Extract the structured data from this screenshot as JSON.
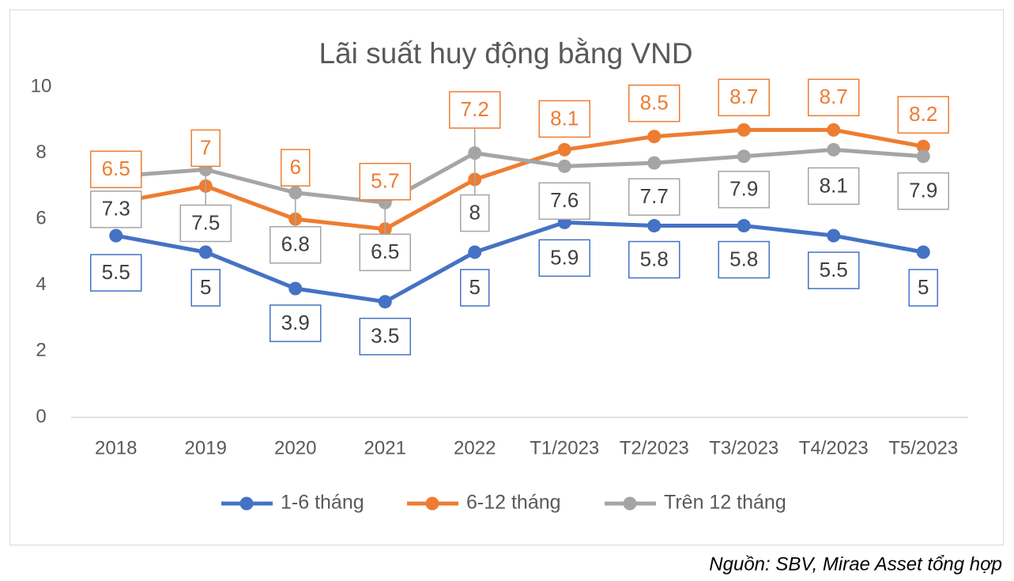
{
  "chart_data": {
    "type": "line",
    "title": "Lãi suất huy động bằng VND",
    "categories": [
      "2018",
      "2019",
      "2020",
      "2021",
      "2022",
      "T1/2023",
      "T2/2023",
      "T3/2023",
      "T4/2023",
      "T5/2023"
    ],
    "series": [
      {
        "name": "1-6 tháng",
        "color": "#4472c4",
        "values": [
          5.5,
          5,
          3.9,
          3.5,
          5,
          5.9,
          5.8,
          5.8,
          5.5,
          5
        ]
      },
      {
        "name": "6-12 tháng",
        "color": "#ed7d31",
        "values": [
          6.5,
          7,
          6,
          5.7,
          7.2,
          8.1,
          8.5,
          8.7,
          8.7,
          8.2
        ]
      },
      {
        "name": "Trên 12 tháng",
        "color": "#a5a5a5",
        "values": [
          7.3,
          7.5,
          6.8,
          6.5,
          8,
          7.6,
          7.7,
          7.9,
          8.1,
          7.9
        ]
      }
    ],
    "ylim": [
      0,
      10
    ],
    "yticks": [
      0,
      2,
      4,
      6,
      8,
      10
    ],
    "grid": false,
    "legend": "bottom",
    "source": "Nguồn: SBV, Mirae Asset tổng hợp"
  }
}
